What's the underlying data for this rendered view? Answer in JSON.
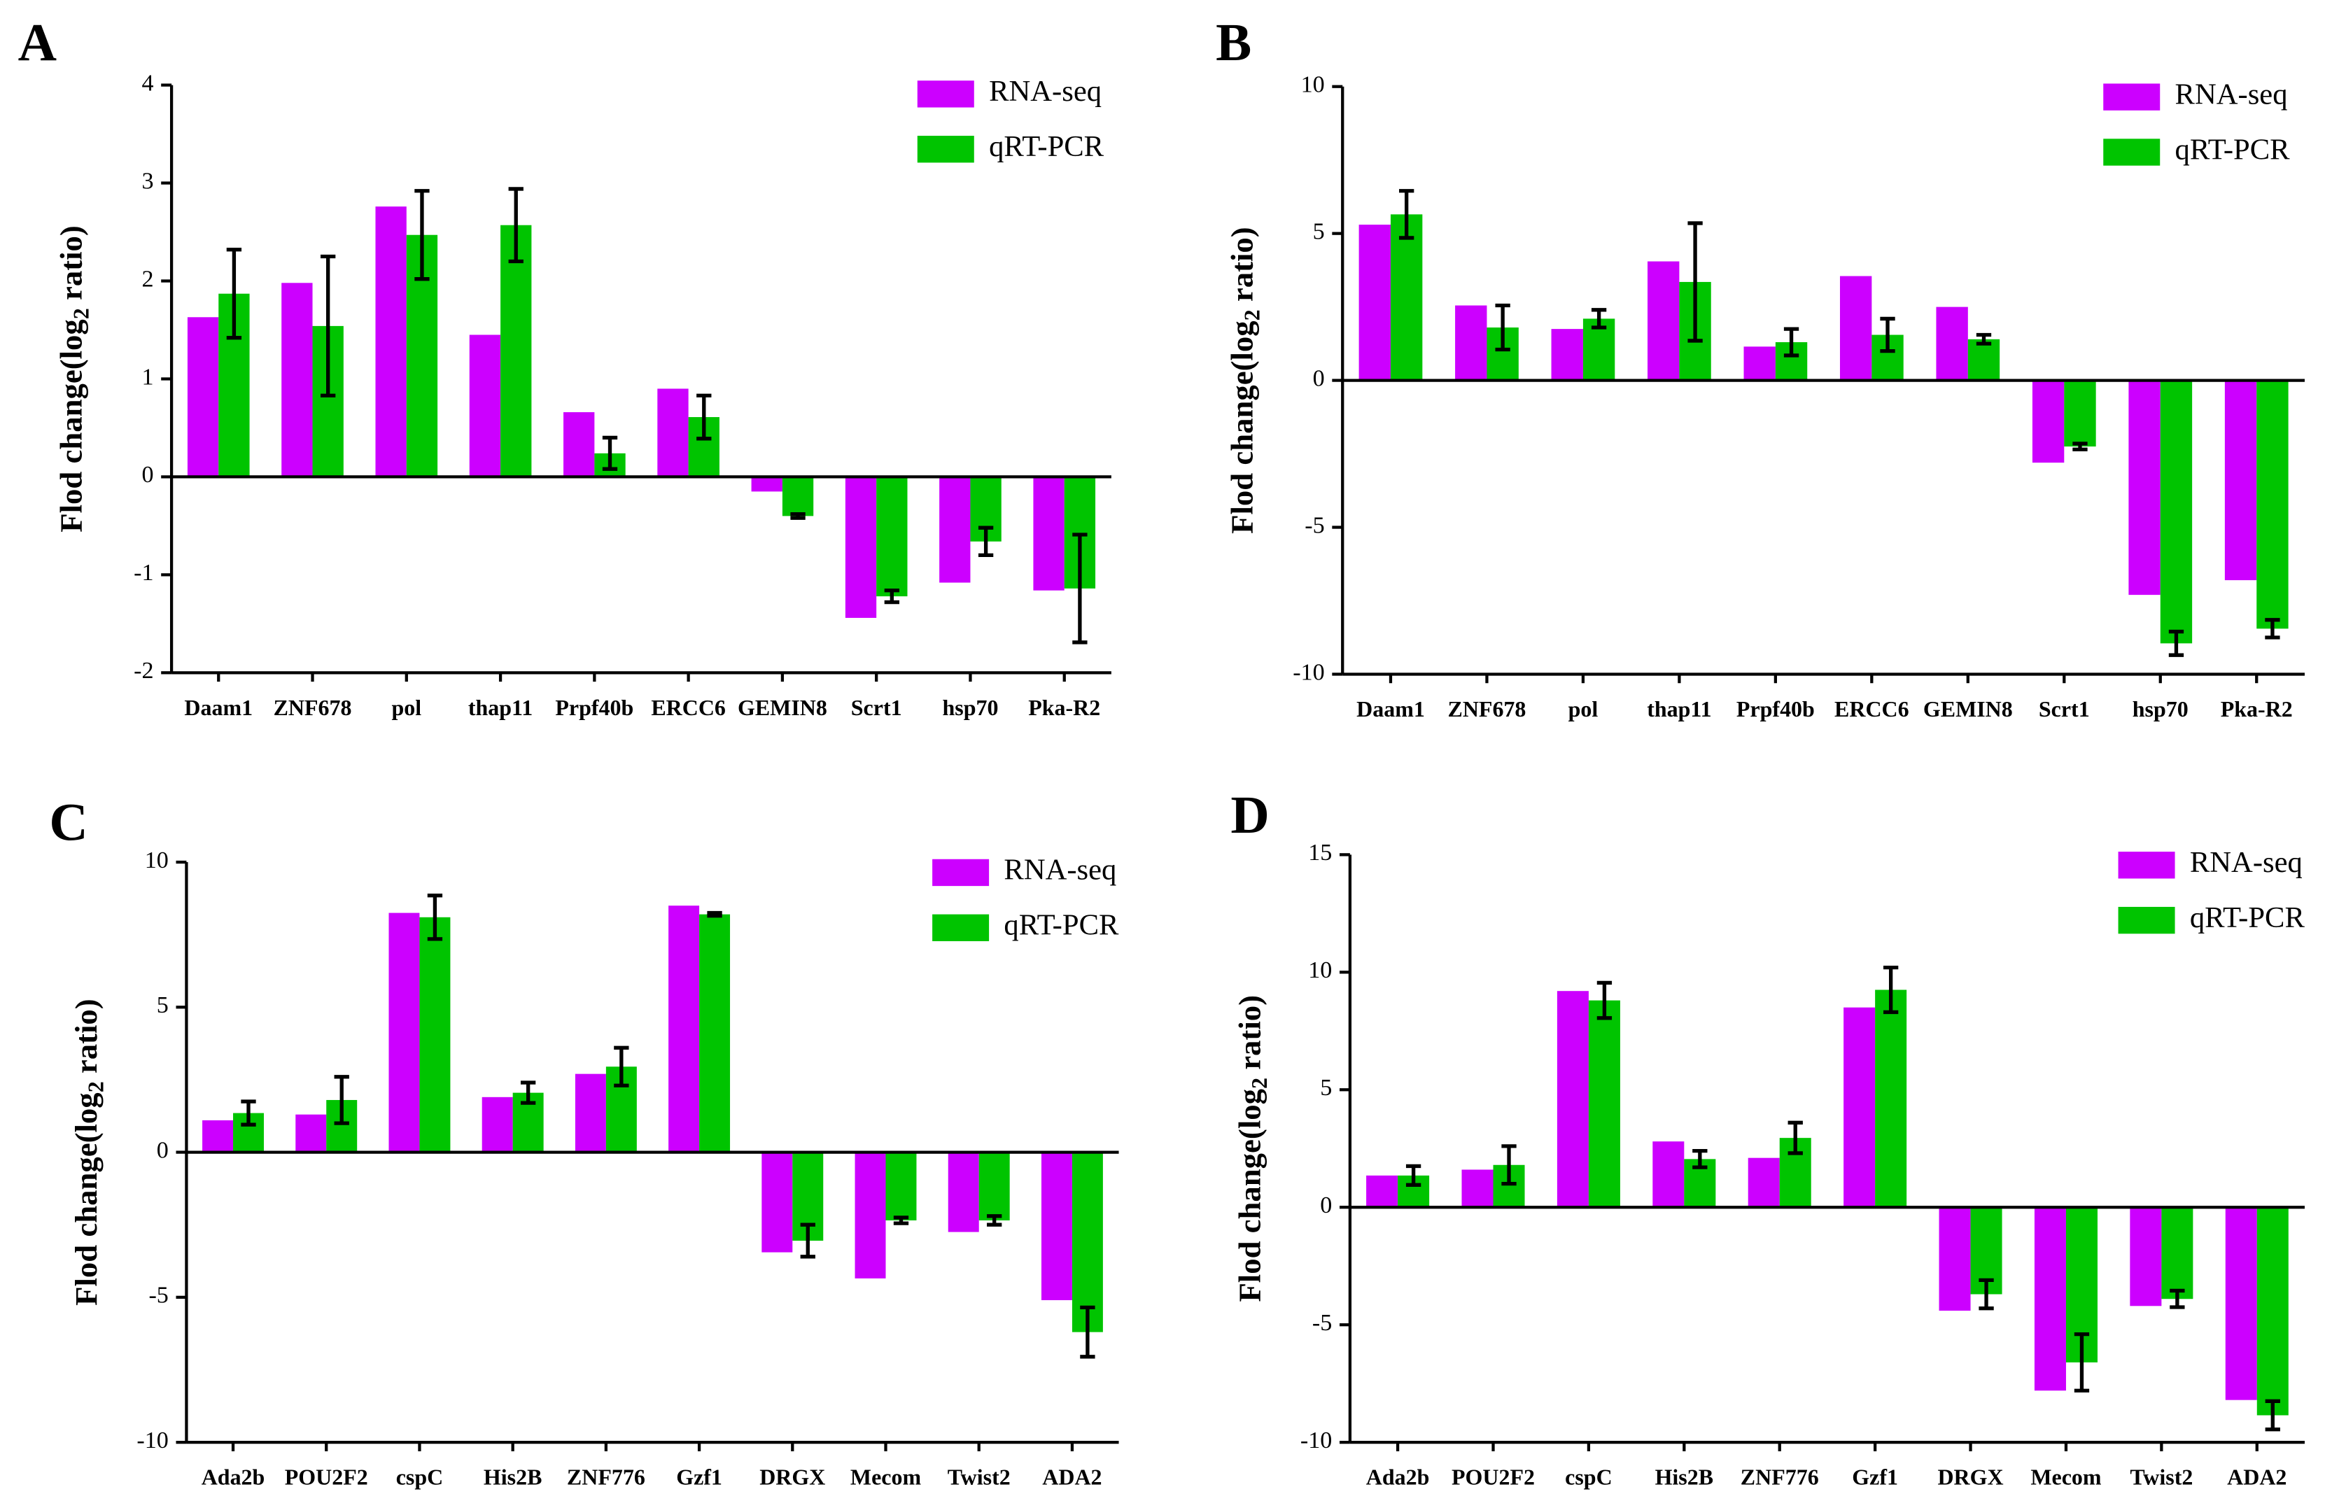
{
  "chart_data": [
    {
      "type": "bar",
      "label": "A",
      "y_label": [
        "Flod change(log",
        "2",
        " ratio)"
      ],
      "categories": [
        "Daam1",
        "ZNF678",
        "pol",
        "thap11",
        "Prpf40b",
        "ERCC6",
        "GEMIN8",
        "Scrt1",
        "hsp70",
        "Pka-R2"
      ],
      "series": [
        {
          "name": "RNA-seq",
          "color": "#cc00ff",
          "values": [
            1.63,
            1.98,
            2.76,
            1.45,
            0.66,
            0.9,
            -0.15,
            -1.44,
            -1.08,
            -1.16
          ]
        },
        {
          "name": "qRT-PCR",
          "color": "#00c400",
          "values": [
            1.87,
            1.54,
            2.47,
            2.57,
            0.24,
            0.61,
            -0.4,
            -1.22,
            -0.66,
            -1.14
          ],
          "errors": [
            0.45,
            0.71,
            0.45,
            0.37,
            0.16,
            0.22,
            0.02,
            0.06,
            0.14,
            0.55
          ]
        }
      ],
      "ylim": [
        -2,
        4
      ],
      "yticks": [
        -2,
        -1,
        0,
        1,
        2,
        3,
        4
      ]
    },
    {
      "type": "bar",
      "label": "B",
      "y_label": [
        "Flod change(log",
        "2",
        " ratio)"
      ],
      "categories": [
        "Daam1",
        "ZNF678",
        "pol",
        "thap11",
        "Prpf40b",
        "ERCC6",
        "GEMIN8",
        "Scrt1",
        "hsp70",
        "Pka-R2"
      ],
      "series": [
        {
          "name": "RNA-seq",
          "color": "#cc00ff",
          "values": [
            5.3,
            2.55,
            1.75,
            4.05,
            1.15,
            3.55,
            2.5,
            -2.8,
            -7.3,
            -6.8
          ]
        },
        {
          "name": "qRT-PCR",
          "color": "#00c400",
          "values": [
            5.65,
            1.8,
            2.1,
            3.35,
            1.3,
            1.55,
            1.4,
            -2.25,
            -8.95,
            -8.45
          ],
          "errors": [
            0.8,
            0.75,
            0.3,
            2.0,
            0.45,
            0.55,
            0.15,
            0.1,
            0.4,
            0.3
          ]
        }
      ],
      "ylim": [
        -10,
        10
      ],
      "yticks": [
        -10,
        -5,
        0,
        5,
        10
      ]
    },
    {
      "type": "bar",
      "label": "C",
      "y_label": [
        "Flod change(log",
        "2",
        " ratio)"
      ],
      "categories": [
        "Ada2b",
        "POU2F2",
        "cspC",
        "His2B",
        "ZNF776",
        "Gzf1",
        "DRGX",
        "Mecom",
        "Twist2",
        "ADA2"
      ],
      "series": [
        {
          "name": "RNA-seq",
          "color": "#cc00ff",
          "values": [
            1.1,
            1.3,
            8.25,
            1.9,
            2.7,
            8.5,
            -3.45,
            -4.35,
            -2.75,
            -5.1
          ]
        },
        {
          "name": "qRT-PCR",
          "color": "#00c400",
          "values": [
            1.35,
            1.8,
            8.1,
            2.05,
            2.95,
            8.2,
            -3.05,
            -2.35,
            -2.35,
            -6.2
          ],
          "errors": [
            0.4,
            0.8,
            0.75,
            0.35,
            0.65,
            0.05,
            0.55,
            0.1,
            0.15,
            0.85
          ]
        }
      ],
      "ylim": [
        -10,
        10
      ],
      "yticks": [
        -10,
        -5,
        0,
        5,
        10
      ]
    },
    {
      "type": "bar",
      "label": "D",
      "y_label": [
        "Flod change(log",
        "2",
        " ratio)"
      ],
      "categories": [
        "Ada2b",
        "POU2F2",
        "cspC",
        "His2B",
        "ZNF776",
        "Gzf1",
        "DRGX",
        "Mecom",
        "Twist2",
        "ADA2"
      ],
      "series": [
        {
          "name": "RNA-seq",
          "color": "#cc00ff",
          "values": [
            1.35,
            1.6,
            9.2,
            2.8,
            2.1,
            8.5,
            -4.4,
            -7.8,
            -4.2,
            -8.2
          ]
        },
        {
          "name": "qRT-PCR",
          "color": "#00c400",
          "values": [
            1.35,
            1.8,
            8.8,
            2.05,
            2.95,
            9.25,
            -3.7,
            -6.6,
            -3.9,
            -8.85
          ],
          "errors": [
            0.4,
            0.8,
            0.75,
            0.35,
            0.65,
            0.95,
            0.6,
            1.2,
            0.35,
            0.6
          ]
        }
      ],
      "ylim": [
        -10,
        15
      ],
      "yticks": [
        -10,
        -5,
        0,
        5,
        10,
        15
      ]
    }
  ]
}
